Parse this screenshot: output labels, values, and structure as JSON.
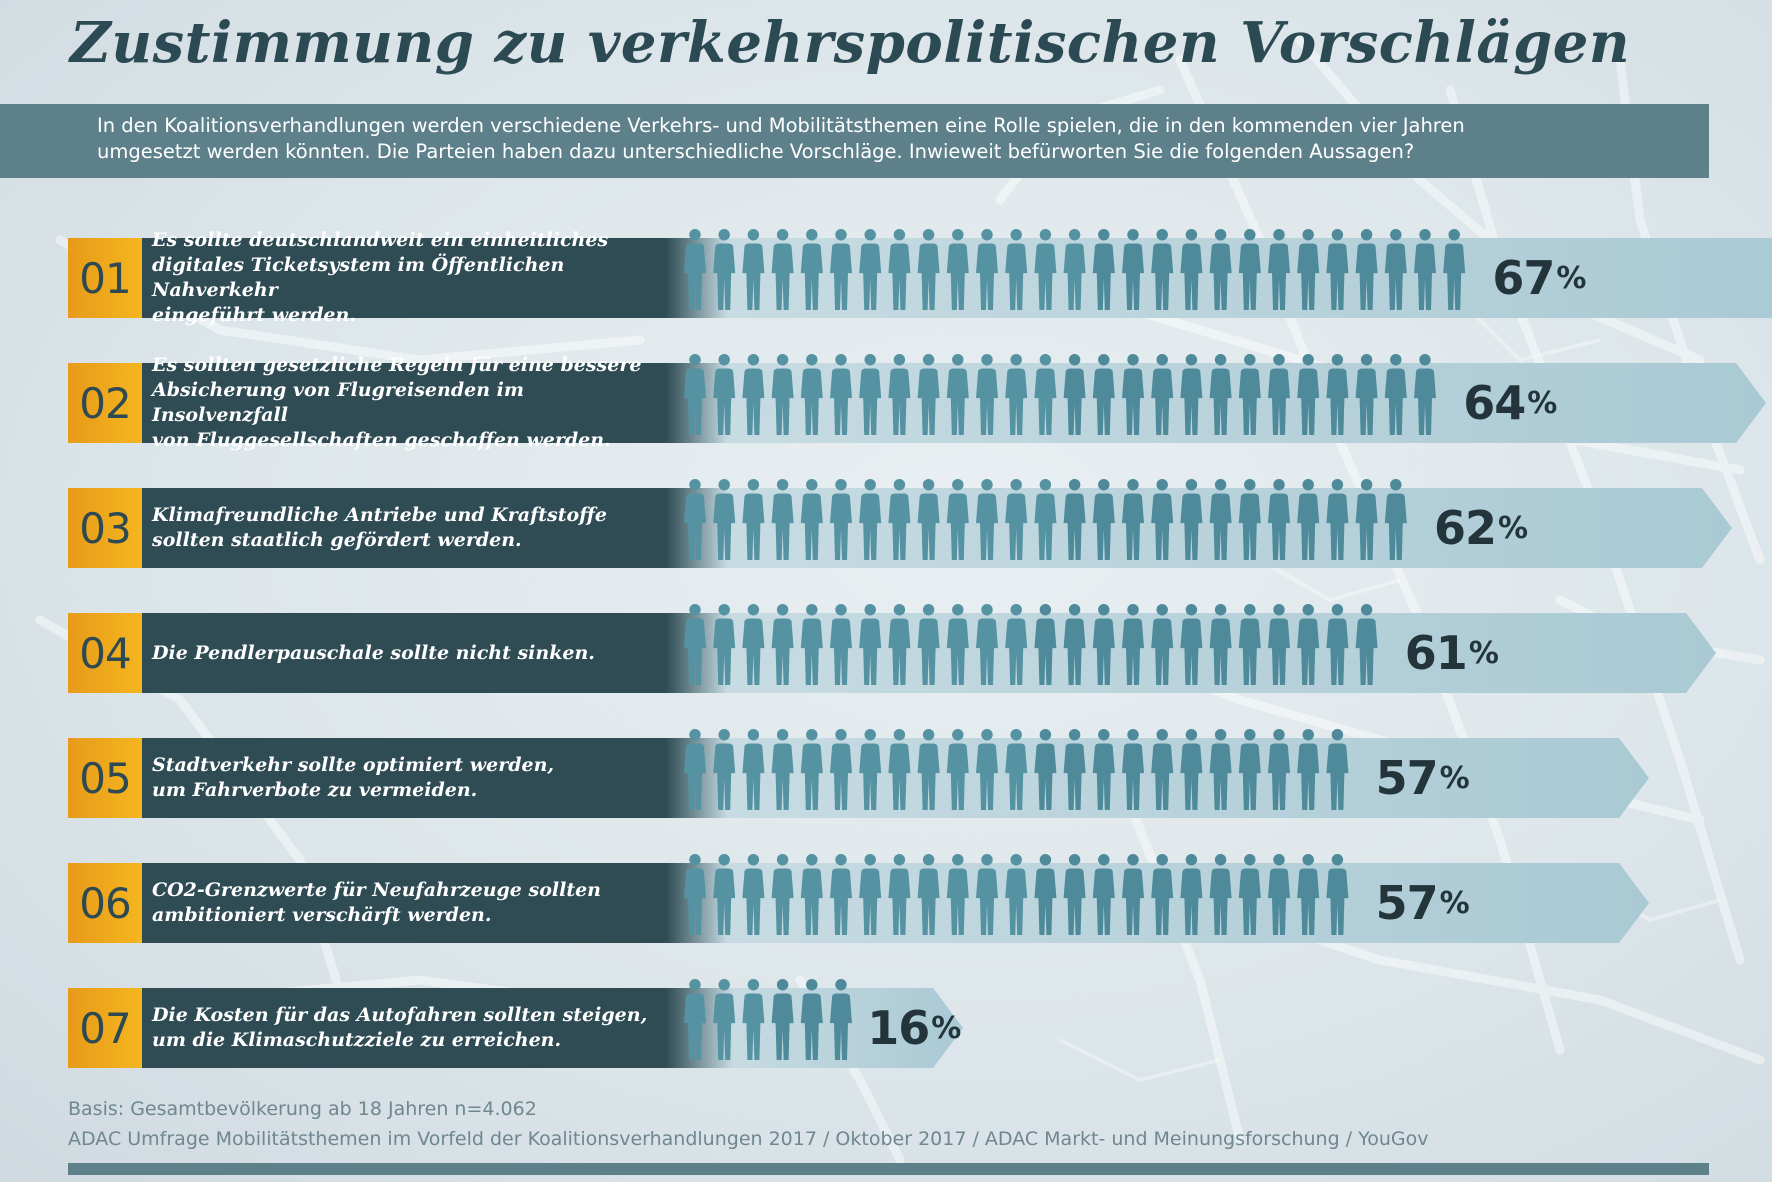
{
  "title": "Zustimmung zu verkehrspolitischen Vorschlägen",
  "intro": {
    "line1": "In den Koalitionsverhandlungen werden verschiedene Verkehrs- und Mobilitätsthemen eine Rolle spielen, die in den kommenden vier Jahren",
    "line2": "umgesetzt werden könnten. Die Parteien haben dazu unterschiedliche Vorschläge. Inwieweit befürworten Sie die folgenden Aussagen?"
  },
  "colors": {
    "accent_orange": "#f4b61e",
    "label_dark": "#2f4c55",
    "chevron_light": "#a9c9d4",
    "figure_teal": "#4f8a9a",
    "intro_bar": "#5d808a"
  },
  "chart_data": {
    "type": "bar",
    "categories": [
      "01",
      "02",
      "03",
      "04",
      "05",
      "06",
      "07"
    ],
    "labels": [
      "Es sollte deutschlandweit ein einheitliches\ndigitales Ticketsystem im Öffentlichen Nahverkehr\neingeführt werden.",
      "Es sollten gesetzliche Regeln für eine bessere\nAbsicherung von Flugreisenden im Insolvenzfall\nvon Fluggesellschaften geschaffen werden.",
      "Klimafreundliche Antriebe und Kraftstoffe\nsollten staatlich gefördert werden.",
      "Die Pendlerpauschale sollte nicht sinken.",
      "Stadtverkehr sollte optimiert werden,\num Fahrverbote zu vermeiden.",
      "CO2-Grenzwerte für Neufahrzeuge sollten\nambitioniert verschärft werden.",
      "Die Kosten für das Autofahren sollten steigen,\num die Klimaschutzziele zu erreichen."
    ],
    "values": [
      67,
      64,
      62,
      61,
      57,
      57,
      16
    ],
    "value_labels": [
      "67",
      "64",
      "62",
      "61",
      "57",
      "57",
      "16"
    ],
    "unit": "%"
  },
  "footer": {
    "line1": "Basis: Gesamtbevölkerung ab 18 Jahren n=4.062",
    "line2": "ADAC Umfrage Mobilitätsthemen im Vorfeld der Koalitionsverhandlungen 2017 / Oktober 2017 / ADAC Markt- und Meinungsforschung / YouGov"
  }
}
